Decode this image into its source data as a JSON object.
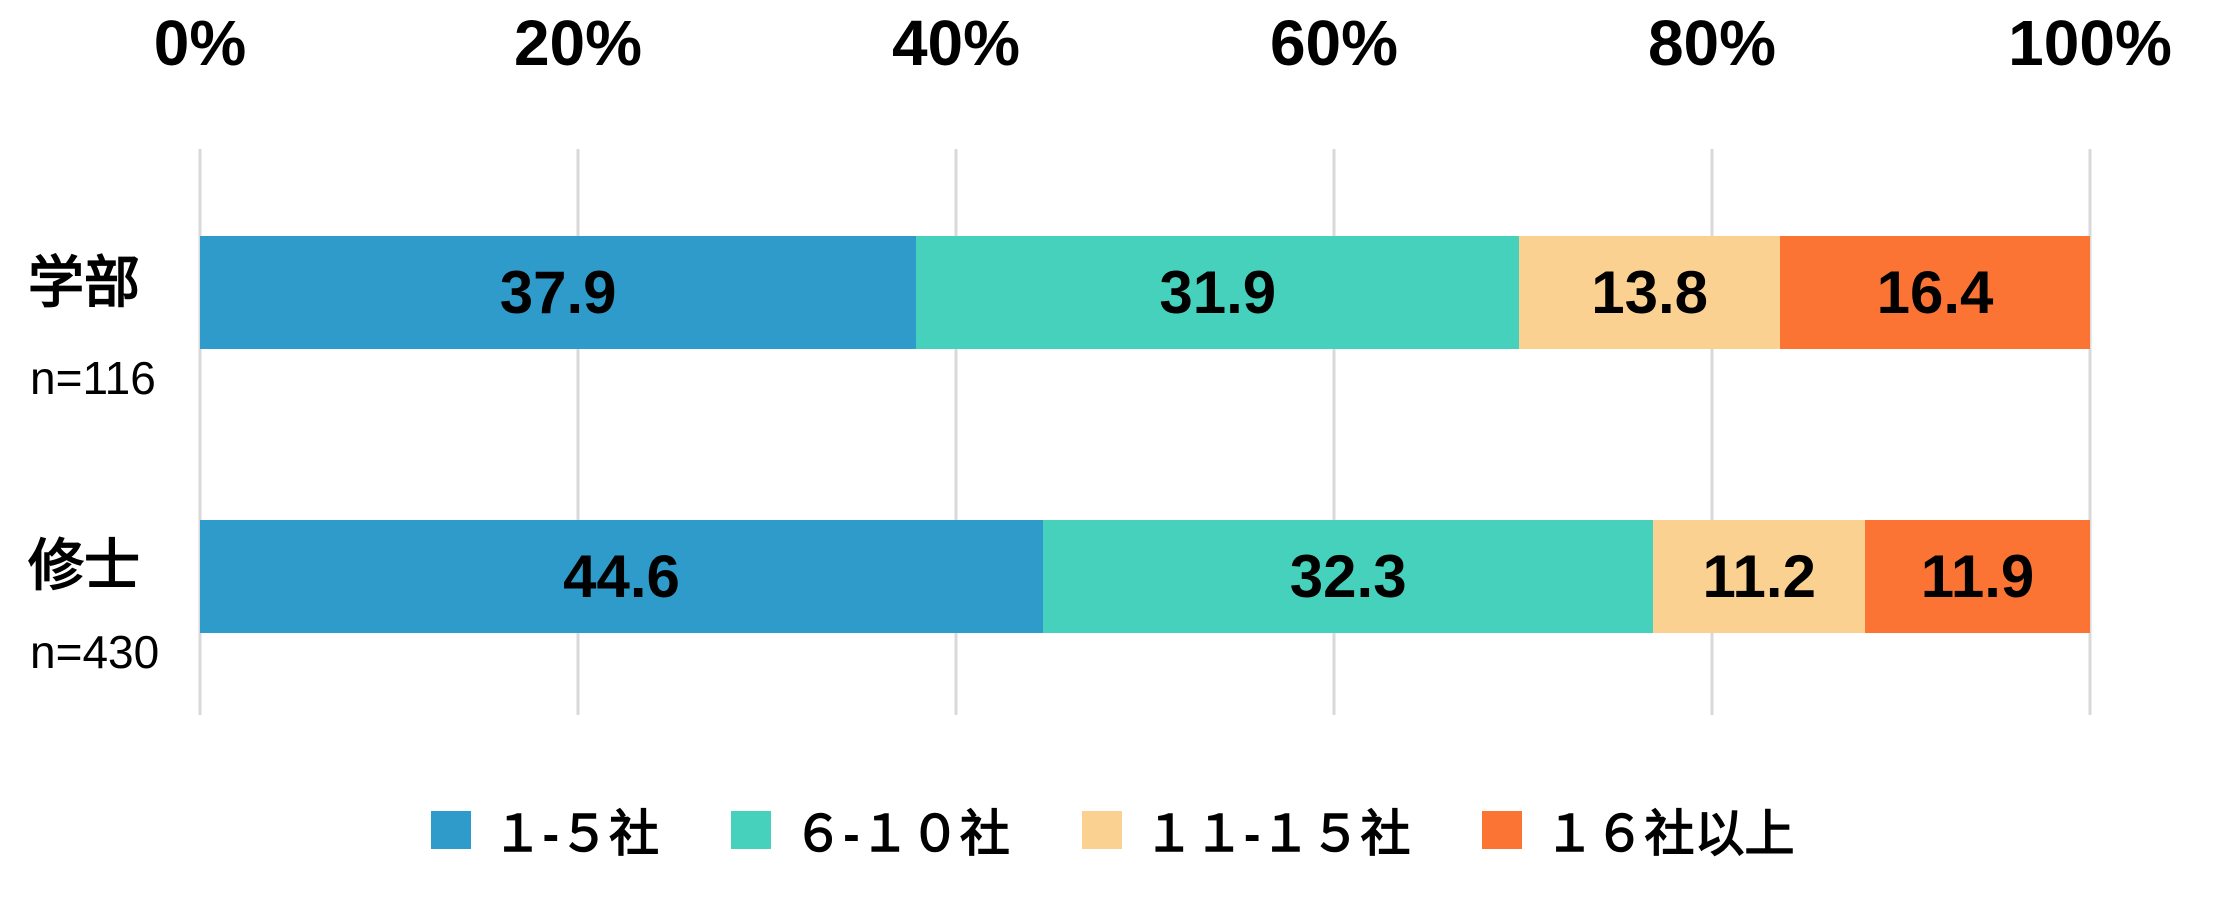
{
  "chart_data": {
    "type": "bar",
    "orientation": "horizontal",
    "stacked": true,
    "unit": "%",
    "grid": true,
    "legend_position": "bottom",
    "x_axis": {
      "position": "top",
      "min": 0,
      "max": 100,
      "ticks": [
        {
          "label": "0%",
          "value": 0
        },
        {
          "label": "20%",
          "value": 20
        },
        {
          "label": "40%",
          "value": 40
        },
        {
          "label": "60%",
          "value": 60
        },
        {
          "label": "80%",
          "value": 80
        },
        {
          "label": "100%",
          "value": 100
        }
      ]
    },
    "categories": [
      {
        "label": "学部",
        "n_label": "n=116"
      },
      {
        "label": "修士",
        "n_label": "n=430"
      }
    ],
    "series": [
      {
        "name": "１-５社",
        "color": "#2e9bcb",
        "values": [
          37.9,
          44.6
        ]
      },
      {
        "name": "６-１０社",
        "color": "#45d1bc",
        "values": [
          31.9,
          32.3
        ]
      },
      {
        "name": "１１-１５社",
        "color": "#fbd191",
        "values": [
          13.8,
          11.2
        ]
      },
      {
        "name": "１６社以上",
        "color": "#fb7433",
        "values": [
          16.4,
          11.9
        ]
      }
    ]
  },
  "colors": {
    "background": "#ffffff",
    "gridline": "#d9d9d9",
    "text": "#000000"
  }
}
